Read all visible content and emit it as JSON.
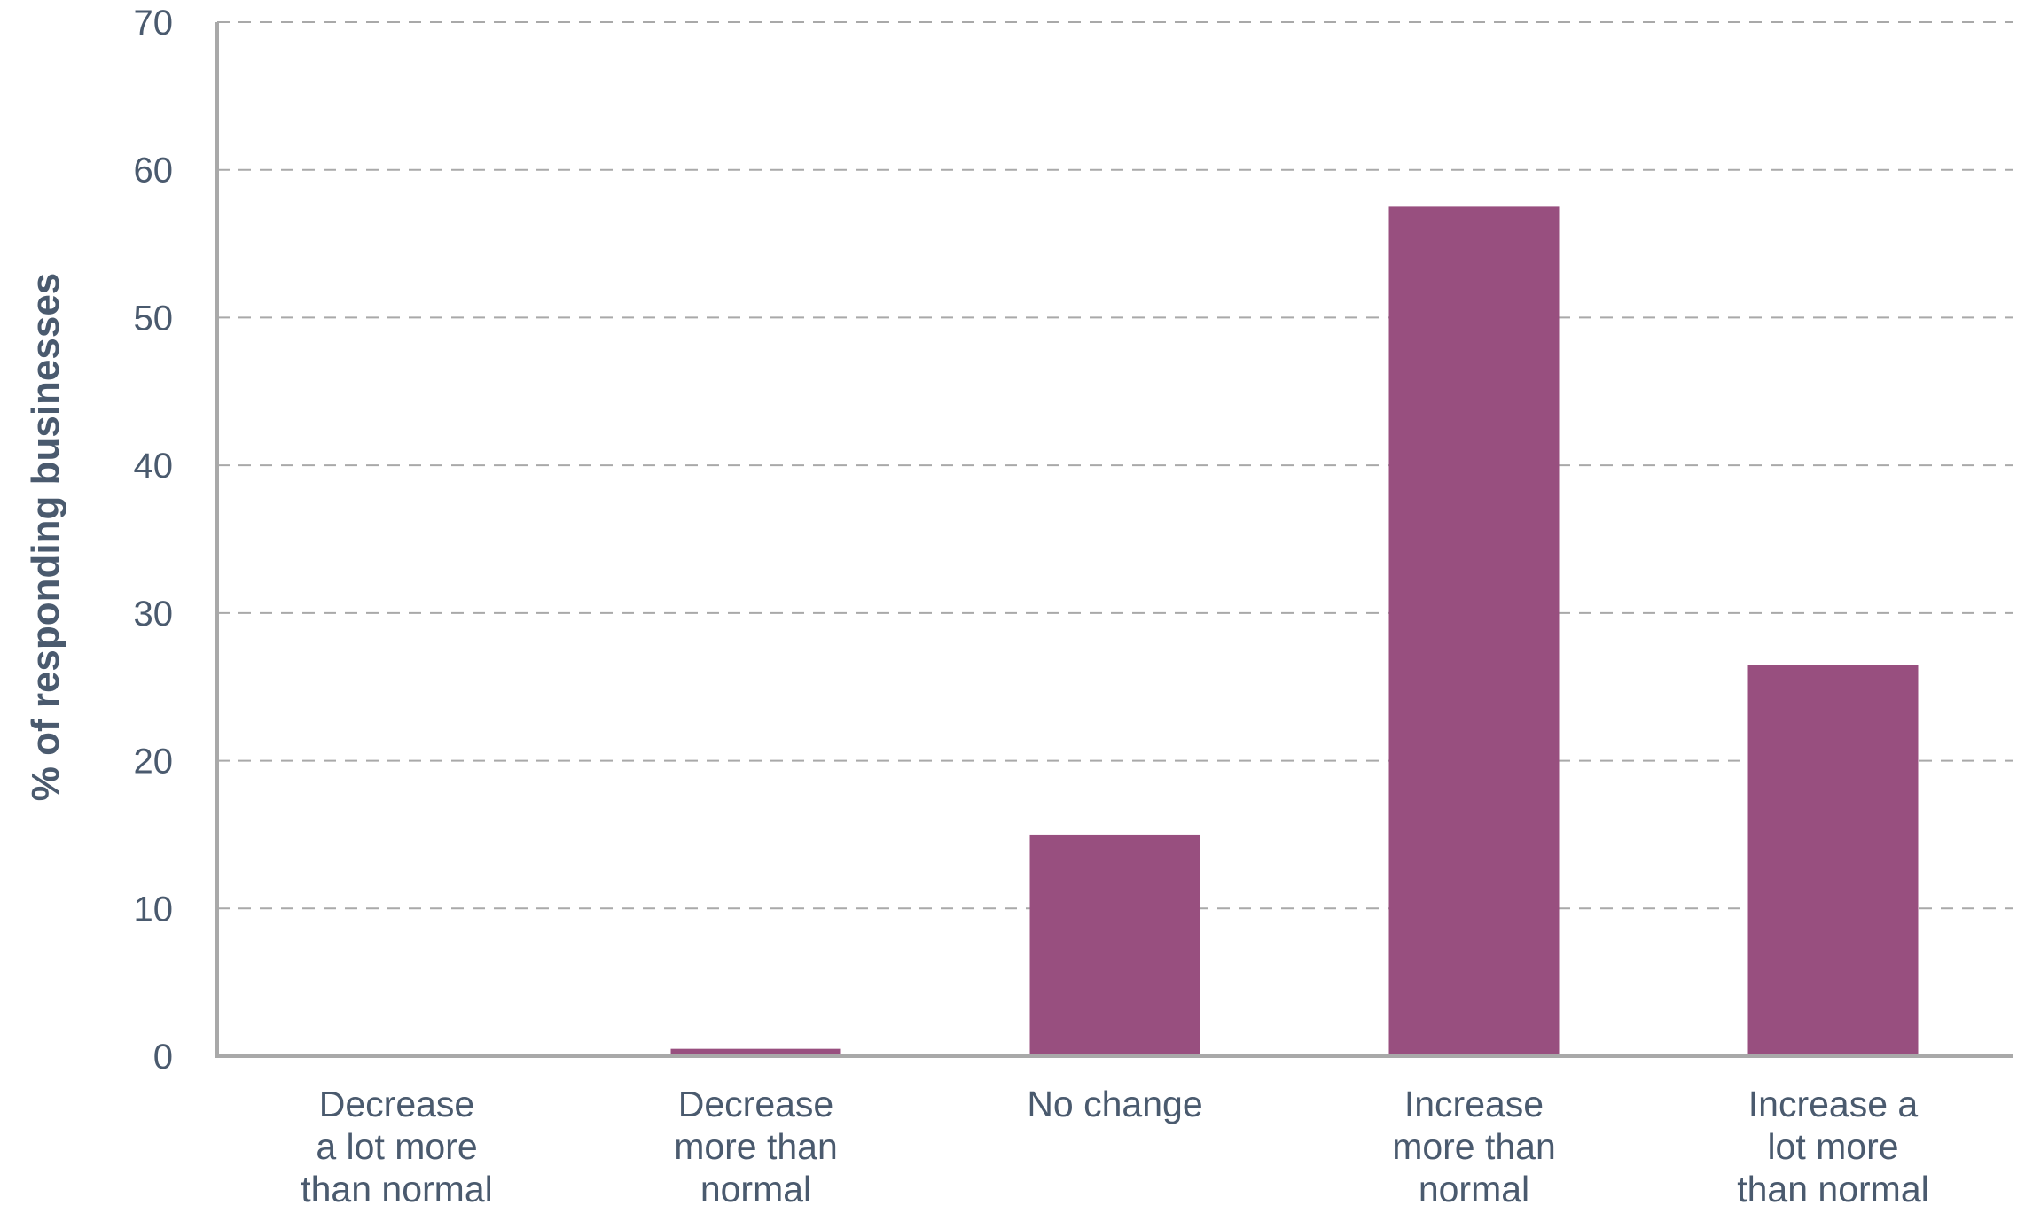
{
  "chart_data": {
    "type": "bar",
    "categories": [
      [
        "Decrease",
        "a lot more",
        "than normal"
      ],
      [
        "Decrease",
        "more than",
        "normal"
      ],
      [
        "No change"
      ],
      [
        "Increase",
        "more than",
        "normal"
      ],
      [
        "Increase a",
        "lot more",
        "than normal"
      ]
    ],
    "values": [
      0,
      0.5,
      15,
      57.5,
      26.5
    ],
    "ylabel": "% of responding businesses",
    "xlabel": "",
    "ylim": [
      0,
      70
    ],
    "yticks": [
      0,
      10,
      20,
      30,
      40,
      50,
      60,
      70
    ],
    "grid": true,
    "colors": {
      "bar": "#984f7f",
      "text": "#4a5a6e",
      "grid": "#a9a9a9"
    }
  }
}
